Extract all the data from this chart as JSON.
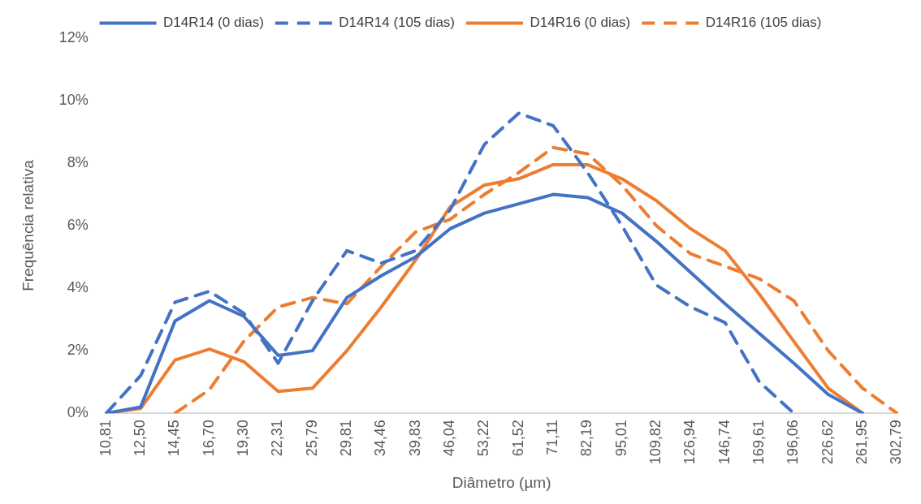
{
  "chart_data": {
    "type": "line",
    "xlabel": "Diâmetro (µm)",
    "ylabel": "Frequência relativa",
    "categories": [
      "10,81",
      "12,50",
      "14,45",
      "16,70",
      "19,30",
      "22,31",
      "25,79",
      "29,81",
      "34,46",
      "39,83",
      "46,04",
      "53,22",
      "61,52",
      "71,11",
      "82,19",
      "95,01",
      "109,82",
      "126,94",
      "146,74",
      "169,61",
      "196,06",
      "226,62",
      "261,95",
      "302,79"
    ],
    "ylim": [
      0,
      12
    ],
    "yticks": [
      {
        "value": 0,
        "label": "0%"
      },
      {
        "value": 2,
        "label": "2%"
      },
      {
        "value": 4,
        "label": "4%"
      },
      {
        "value": 6,
        "label": "6%"
      },
      {
        "value": 8,
        "label": "8%"
      },
      {
        "value": 10,
        "label": "10%"
      },
      {
        "value": 12,
        "label": "12%"
      }
    ],
    "grid": false,
    "legend": "top",
    "marker": "none",
    "series": [
      {
        "name": "D14R14 (0 dias)",
        "color": "#4472c4",
        "line_style": "solid",
        "values": [
          0,
          0.2,
          2.95,
          3.6,
          3.1,
          1.85,
          2.0,
          3.7,
          4.4,
          5.0,
          5.9,
          6.4,
          6.7,
          7.0,
          6.9,
          6.4,
          5.5,
          4.5,
          3.5,
          2.55,
          1.6,
          0.6,
          0,
          null
        ]
      },
      {
        "name": "D14R14 (105 dias)",
        "color": "#4472c4",
        "line_style": "dashed",
        "values": [
          0,
          1.2,
          3.55,
          3.9,
          3.2,
          1.6,
          3.6,
          5.2,
          4.8,
          5.2,
          6.5,
          8.6,
          9.6,
          9.2,
          7.7,
          6.0,
          4.1,
          3.4,
          2.9,
          1.0,
          0,
          null,
          null,
          null
        ]
      },
      {
        "name": "D14R16 (0 dias)",
        "color": "#ed7d31",
        "line_style": "solid",
        "values": [
          0,
          0.15,
          1.7,
          2.05,
          1.65,
          0.7,
          0.8,
          2.0,
          3.4,
          4.9,
          6.6,
          7.3,
          7.5,
          7.95,
          7.95,
          7.5,
          6.8,
          5.9,
          5.2,
          3.8,
          2.3,
          0.8,
          0,
          null
        ]
      },
      {
        "name": "D14R16 (105 dias)",
        "color": "#ed7d31",
        "line_style": "dashed",
        "values": [
          null,
          null,
          0,
          0.75,
          2.3,
          3.4,
          3.7,
          3.5,
          4.7,
          5.8,
          6.2,
          7.0,
          7.7,
          8.5,
          8.3,
          7.3,
          6.0,
          5.1,
          4.7,
          4.3,
          3.6,
          2.0,
          0.8,
          0
        ]
      }
    ]
  }
}
